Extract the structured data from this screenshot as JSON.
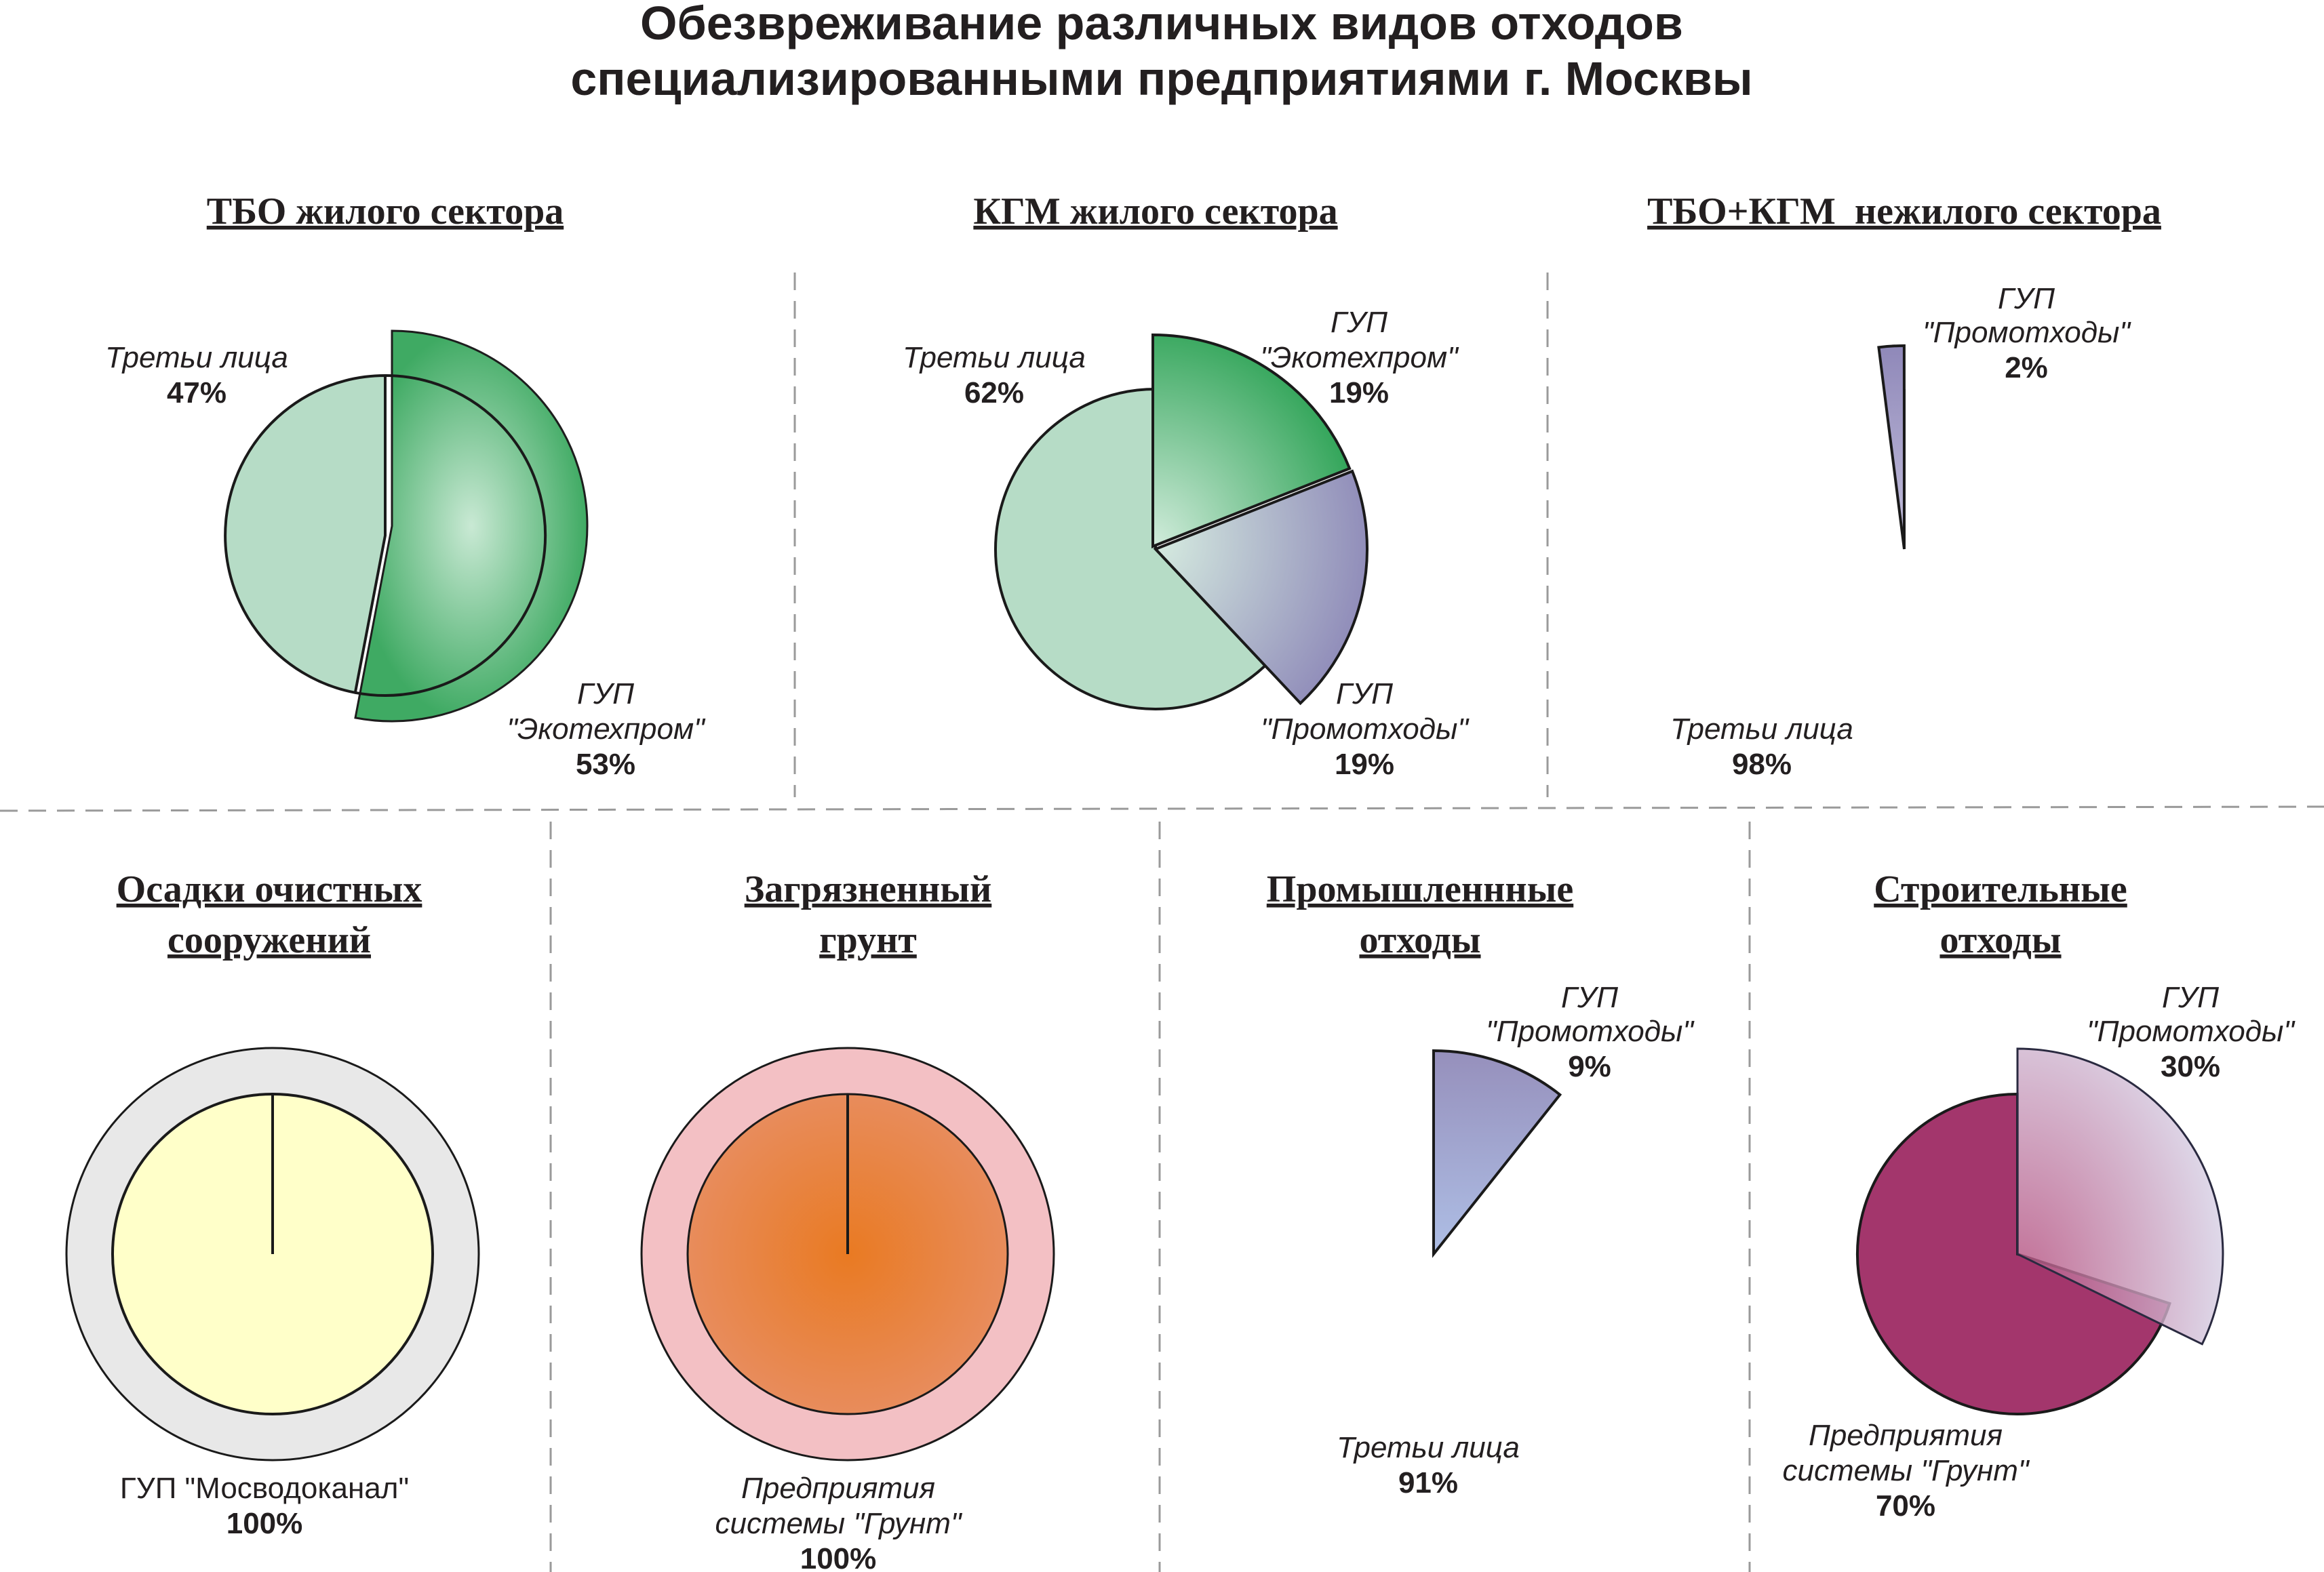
{
  "title_lines": [
    "Обезвреживание различных видов отходов",
    "специализированными предприятиями г. Москвы"
  ],
  "colors": {
    "third_parties_light_green": "#b6dcc6",
    "ekotekhprom_green": "#3faa63",
    "promotkhody_purple": "#8f88b9",
    "mosvodokanal_yellow": "#ffffc9",
    "mosvodokanal_ring": "#e8e8e8",
    "grunt_orange": "#e97d2c",
    "grunt_ring": "#f3c0c4",
    "industrial_blue": "#78c5f1",
    "construction_magenta": "#a3366c"
  },
  "chart_data": [
    {
      "type": "pie",
      "title_lines": [
        "ТБО жилого сектора"
      ],
      "slices": [
        {
          "label_lines": [
            "Третьи лица"
          ],
          "value": 47,
          "pct_text": "47%"
        },
        {
          "label_lines": [
            "ГУП",
            "\"Экотехпром\""
          ],
          "value": 53,
          "pct_text": "53%"
        }
      ]
    },
    {
      "type": "pie",
      "title_lines": [
        "КГМ жилого сектора"
      ],
      "slices": [
        {
          "label_lines": [
            "Третьи лица"
          ],
          "value": 62,
          "pct_text": "62%"
        },
        {
          "label_lines": [
            "ГУП",
            "\"Экотехпром\""
          ],
          "value": 19,
          "pct_text": "19%"
        },
        {
          "label_lines": [
            "ГУП",
            "\"Промотходы\""
          ],
          "value": 19,
          "pct_text": "19%"
        }
      ]
    },
    {
      "type": "pie",
      "title_lines": [
        "ТБО+КГМ  нежилого сектора"
      ],
      "slices": [
        {
          "label_lines": [
            "Третьи лица"
          ],
          "value": 98,
          "pct_text": "98%"
        },
        {
          "label_lines": [
            "ГУП",
            "\"Промотходы\""
          ],
          "value": 2,
          "pct_text": "2%"
        }
      ]
    },
    {
      "type": "pie",
      "title_lines": [
        "Осадки очистных",
        "сооружений"
      ],
      "slices": [
        {
          "label_lines": [
            "ГУП \"Мосводоканал\""
          ],
          "value": 100,
          "pct_text": "100%"
        }
      ]
    },
    {
      "type": "pie",
      "title_lines": [
        "Загрязненный",
        "грунт"
      ],
      "slices": [
        {
          "label_lines": [
            "Предприятия",
            "системы \"Грунт\""
          ],
          "value": 100,
          "pct_text": "100%"
        }
      ]
    },
    {
      "type": "pie",
      "title_lines": [
        "Промышленнные",
        "отходы"
      ],
      "slices": [
        {
          "label_lines": [
            "Третьи лица"
          ],
          "value": 91,
          "pct_text": "91%"
        },
        {
          "label_lines": [
            "ГУП",
            "\"Промотходы\""
          ],
          "value": 9,
          "pct_text": "9%"
        }
      ]
    },
    {
      "type": "pie",
      "title_lines": [
        "Строительные",
        "отходы"
      ],
      "slices": [
        {
          "label_lines": [
            "Предприятия",
            "системы \"Грунт\""
          ],
          "value": 70,
          "pct_text": "70%"
        },
        {
          "label_lines": [
            "ГУП",
            "\"Промотходы\""
          ],
          "value": 30,
          "pct_text": "30%"
        }
      ]
    }
  ]
}
